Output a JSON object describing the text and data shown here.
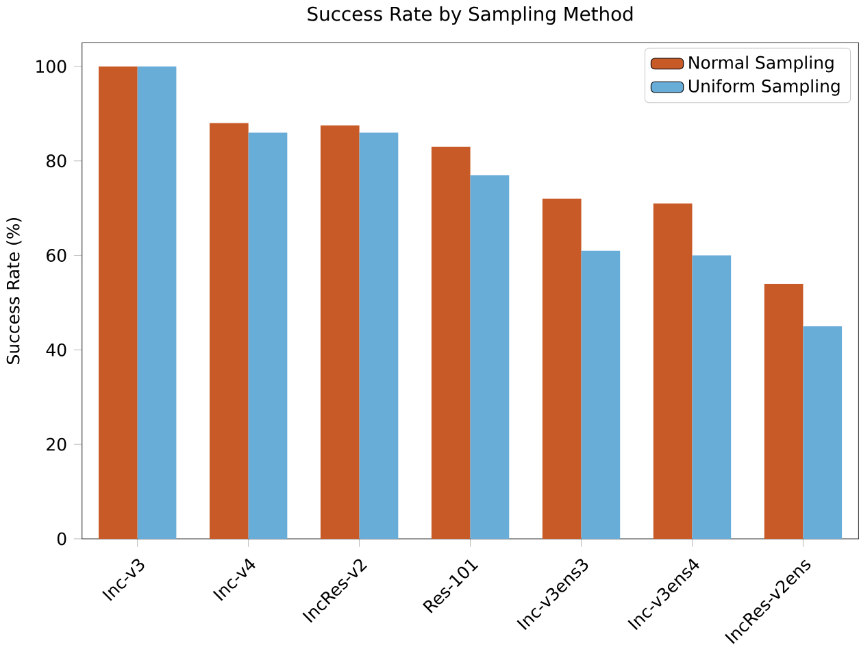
{
  "chart_data": {
    "type": "bar",
    "title": "Success Rate by Sampling Method",
    "ylabel": "Success Rate (%)",
    "categories": [
      "Inc-v3",
      "Inc-v4",
      "IncRes-v2",
      "Res-101",
      "Inc-v3ens3",
      "Inc-v3ens4",
      "IncRes-v2ens"
    ],
    "series": [
      {
        "name": "Normal Sampling",
        "color": "#c85a28",
        "values": [
          100,
          88,
          87.5,
          83,
          72,
          71,
          54
        ]
      },
      {
        "name": "Uniform Sampling",
        "color": "#68acd8",
        "values": [
          100,
          86,
          86,
          77,
          61,
          60,
          45
        ]
      }
    ],
    "ylim": [
      0,
      105
    ],
    "yticks": [
      0,
      20,
      40,
      60,
      80,
      100
    ],
    "legend": "top right"
  }
}
